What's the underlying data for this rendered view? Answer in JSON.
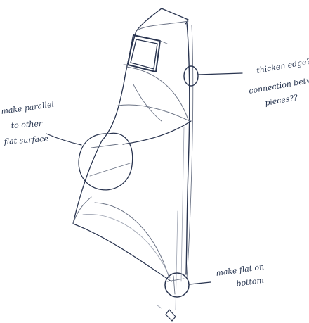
{
  "annotations": {
    "top_right_line1": "thicken edge?",
    "top_right_line2": "connection between",
    "top_right_line3": "pieces??",
    "left_line1": "make parallel",
    "left_line2": "to other",
    "left_line3": "flat surface",
    "bottom_right_line1": "make flat on",
    "bottom_right_line2": "bottom"
  }
}
